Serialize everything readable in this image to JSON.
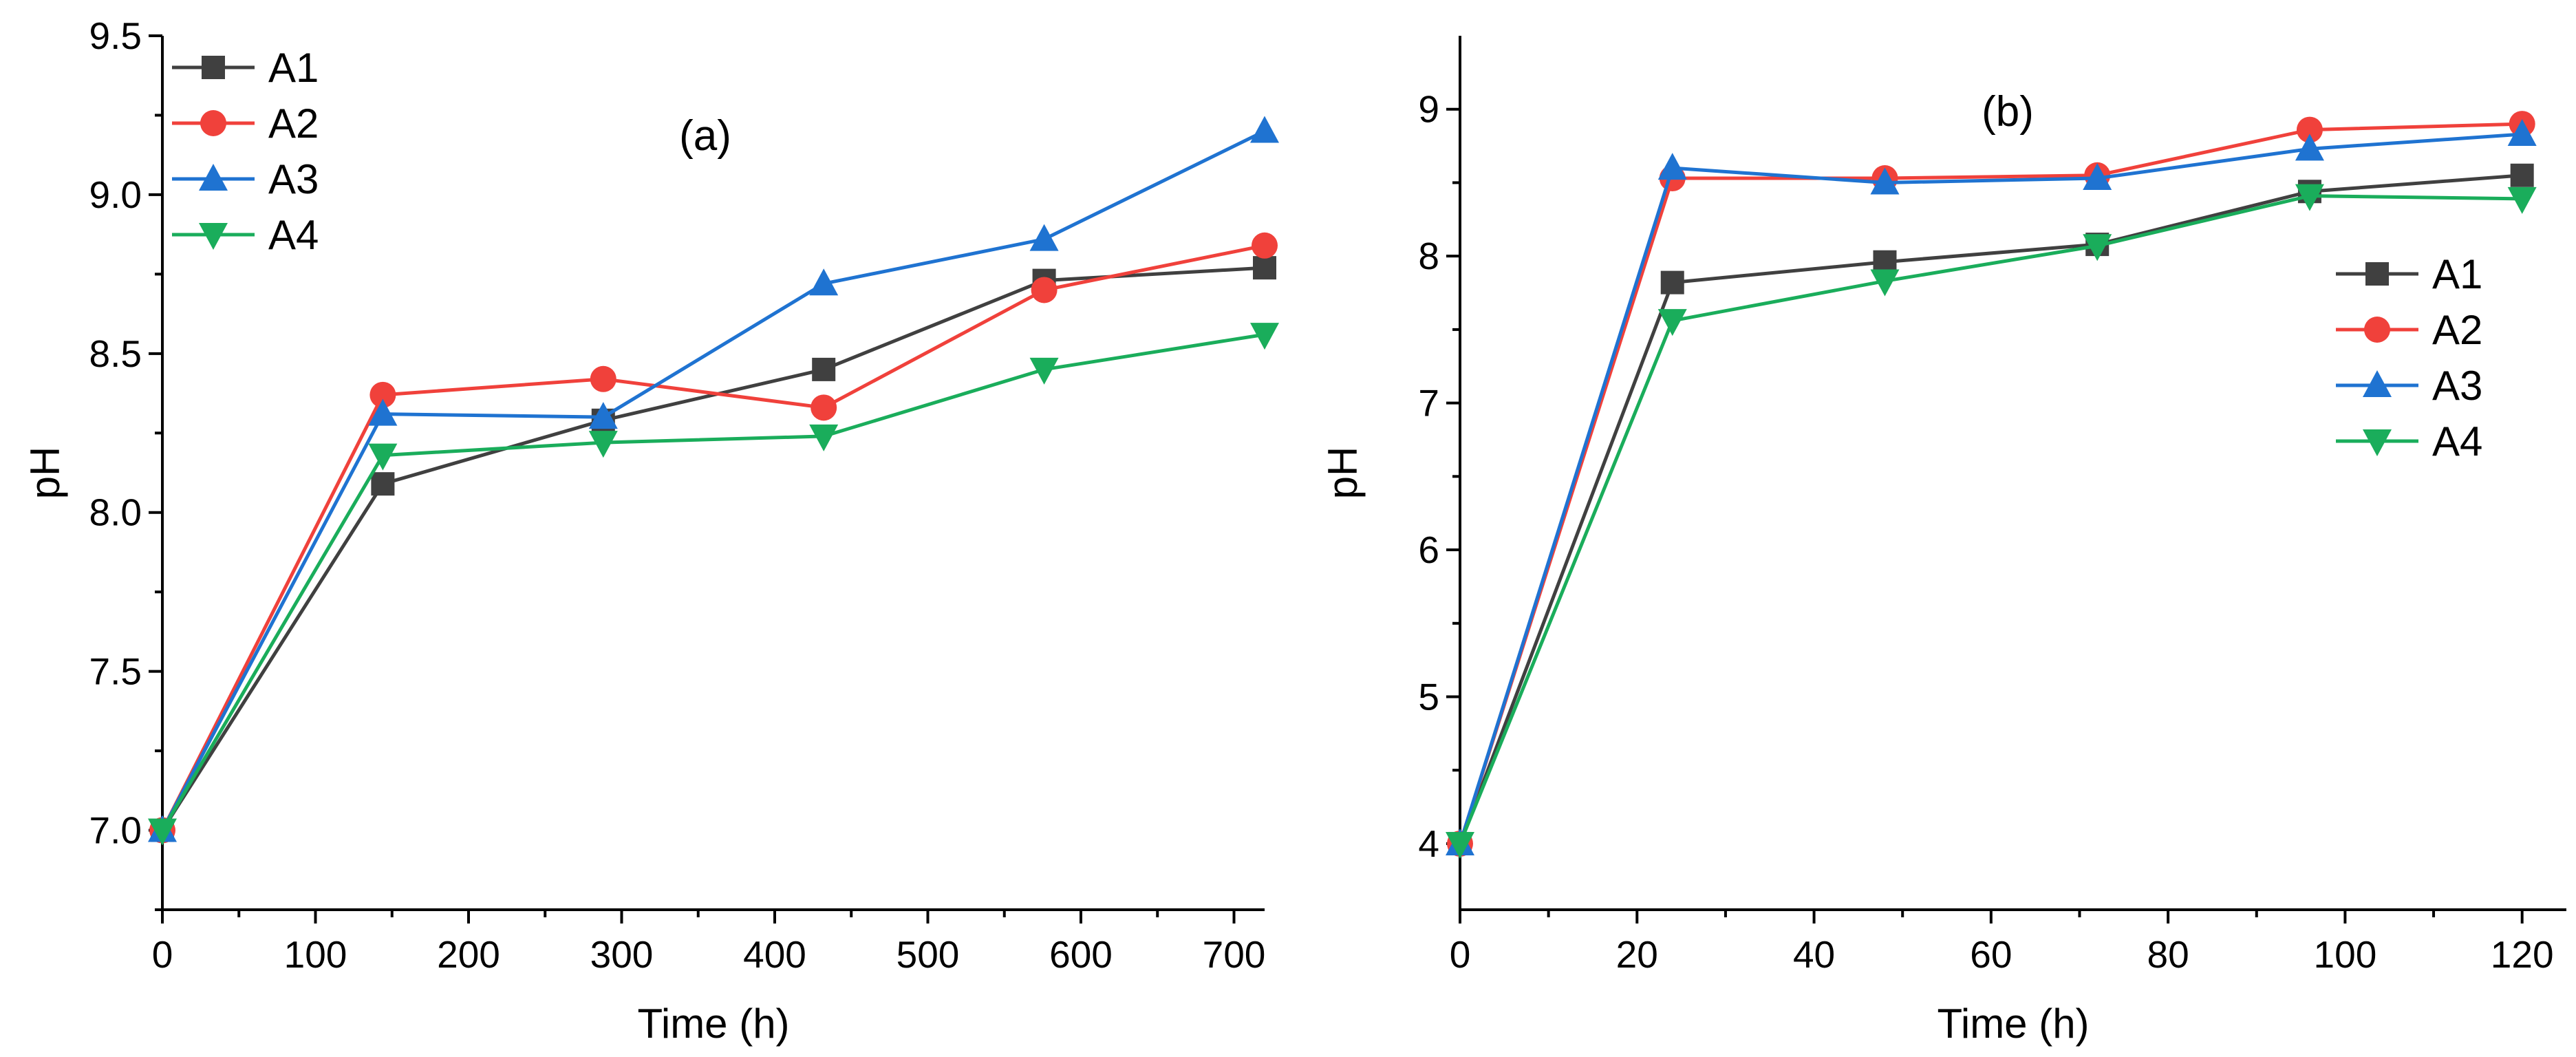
{
  "chart_data": [
    {
      "type": "line",
      "panel_label": "(a)",
      "xlabel": "Time (h)",
      "ylabel": "pH",
      "xlim": [
        0,
        720
      ],
      "ylim": [
        6.75,
        9.5
      ],
      "xticks": [
        0,
        100,
        200,
        300,
        400,
        500,
        600,
        700
      ],
      "xtick_labels": [
        "0",
        "100",
        "200",
        "300",
        "400",
        "500",
        "600",
        "700"
      ],
      "yticks": [
        7.0,
        7.5,
        8.0,
        8.5,
        9.0,
        9.5
      ],
      "ytick_labels": [
        "7.0",
        "7.5",
        "8.0",
        "8.5",
        "9.0",
        "9.5"
      ],
      "legend_position": "top-left",
      "x": [
        0,
        144,
        288,
        432,
        576,
        720
      ],
      "series": [
        {
          "name": "A1",
          "color": "#404040",
          "marker": "square",
          "values": [
            7.0,
            8.09,
            8.29,
            8.45,
            8.73,
            8.77
          ]
        },
        {
          "name": "A2",
          "color": "#f0413b",
          "marker": "circle",
          "values": [
            7.0,
            8.37,
            8.42,
            8.33,
            8.7,
            8.84
          ]
        },
        {
          "name": "A3",
          "color": "#1f73d1",
          "marker": "triangle-up",
          "values": [
            7.0,
            8.31,
            8.3,
            8.72,
            8.86,
            9.2
          ]
        },
        {
          "name": "A4",
          "color": "#1aad5b",
          "marker": "triangle-down",
          "values": [
            7.0,
            8.18,
            8.22,
            8.24,
            8.45,
            8.56
          ]
        }
      ]
    },
    {
      "type": "line",
      "panel_label": "(b)",
      "xlabel": "Time (h)",
      "ylabel": "pH",
      "xlim": [
        0,
        125
      ],
      "ylim": [
        3.55,
        9.5
      ],
      "xticks": [
        0,
        20,
        40,
        60,
        80,
        100,
        120
      ],
      "xtick_labels": [
        "0",
        "20",
        "40",
        "60",
        "80",
        "100",
        "120"
      ],
      "yticks": [
        4,
        5,
        6,
        7,
        8,
        9
      ],
      "ytick_labels": [
        "4",
        "5",
        "6",
        "7",
        "8",
        "9"
      ],
      "legend_position": "middle-right",
      "x": [
        0,
        24,
        48,
        72,
        96,
        120
      ],
      "series": [
        {
          "name": "A1",
          "color": "#404040",
          "marker": "square",
          "values": [
            4.0,
            7.82,
            7.96,
            8.08,
            8.44,
            8.55
          ]
        },
        {
          "name": "A2",
          "color": "#f0413b",
          "marker": "circle",
          "values": [
            4.0,
            8.53,
            8.53,
            8.55,
            8.86,
            8.9
          ]
        },
        {
          "name": "A3",
          "color": "#1f73d1",
          "marker": "triangle-up",
          "values": [
            4.0,
            8.6,
            8.5,
            8.53,
            8.73,
            8.83
          ]
        },
        {
          "name": "A4",
          "color": "#1aad5b",
          "marker": "triangle-down",
          "values": [
            4.0,
            7.56,
            7.83,
            8.07,
            8.41,
            8.39
          ]
        }
      ]
    }
  ]
}
